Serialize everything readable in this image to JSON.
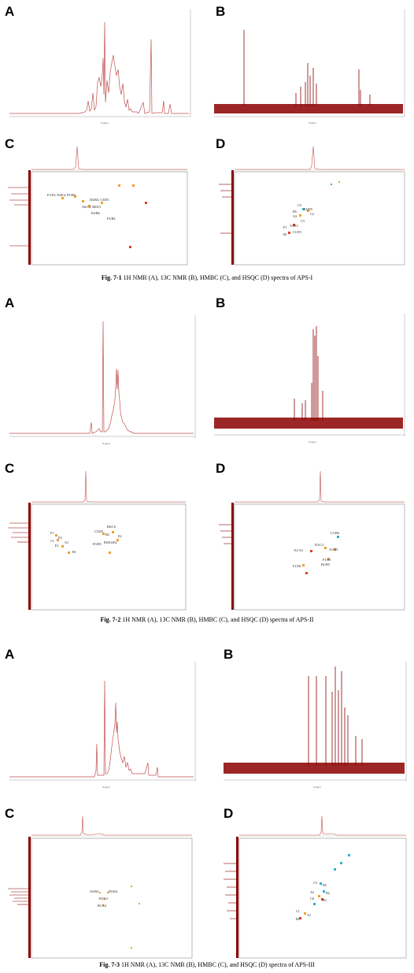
{
  "figures": [
    {
      "id": "fig-7-1",
      "panel_labels": [
        "A",
        "B",
        "C",
        "D"
      ],
      "caption": {
        "label": "Fig. 7-1",
        "text": "1H NMR (A), 13C NMR (B), HMBC (C), and HSQC (D) spectra of APS-I"
      },
      "hmbc_labels": [
        "F1/E3, E4/E4, F5/D6",
        "D4/B3, C3/D5",
        "A6/C2, B6/E3",
        "E4/B6",
        "F3/B3"
      ],
      "hsqc_labels": [
        "C5",
        "E4/D5",
        "B5",
        "A3",
        "C2",
        "C3",
        "F1",
        "A1/E1",
        "B1",
        "C1/D1"
      ]
    },
    {
      "id": "fig-7-2",
      "panel_labels": [
        "A",
        "B",
        "C",
        "D"
      ],
      "caption": {
        "label": "Fig. 7-2",
        "text": "1H NMR (A), 13C NMR (B), HMBC (C), and HSQC (D) spectra of APS-II"
      },
      "hmbc_labels": [
        "F1",
        "D1",
        "C1",
        "A1",
        "E1",
        "B1",
        "C5/D5",
        "B6/C6",
        "BC",
        "E2",
        "E3/B5",
        "B5/E4/E4"
      ],
      "hsqc_labels": [
        "C1/B6",
        "D1/C2",
        "A1/D5",
        "E1/A3",
        "F1/E3",
        "F1/D1",
        "B1/B5"
      ]
    },
    {
      "id": "fig-7-3",
      "panel_labels": [
        "A",
        "B",
        "C",
        "D"
      ],
      "caption": {
        "label": "Fig. 7-3",
        "text": "1H NMR (A), 13C NMR (B), HMBC (C), and HSQC (D) spectra of APS-III"
      },
      "hmbc_labels": [
        "A5/B4",
        "B5/D4",
        "B3/C5",
        "B1/A5"
      ],
      "hsqc_labels": [
        "C5",
        "B5",
        "A5",
        "B2",
        "C6",
        "B3",
        "C1",
        "A1",
        "B1"
      ]
    }
  ],
  "colors": {
    "spectrum_h": "#c0504d",
    "spectrum_c": "#8b0000",
    "peak_orange": "#f0a030",
    "peak_red": "#e04020",
    "peak_cyan": "#30b0d0"
  }
}
